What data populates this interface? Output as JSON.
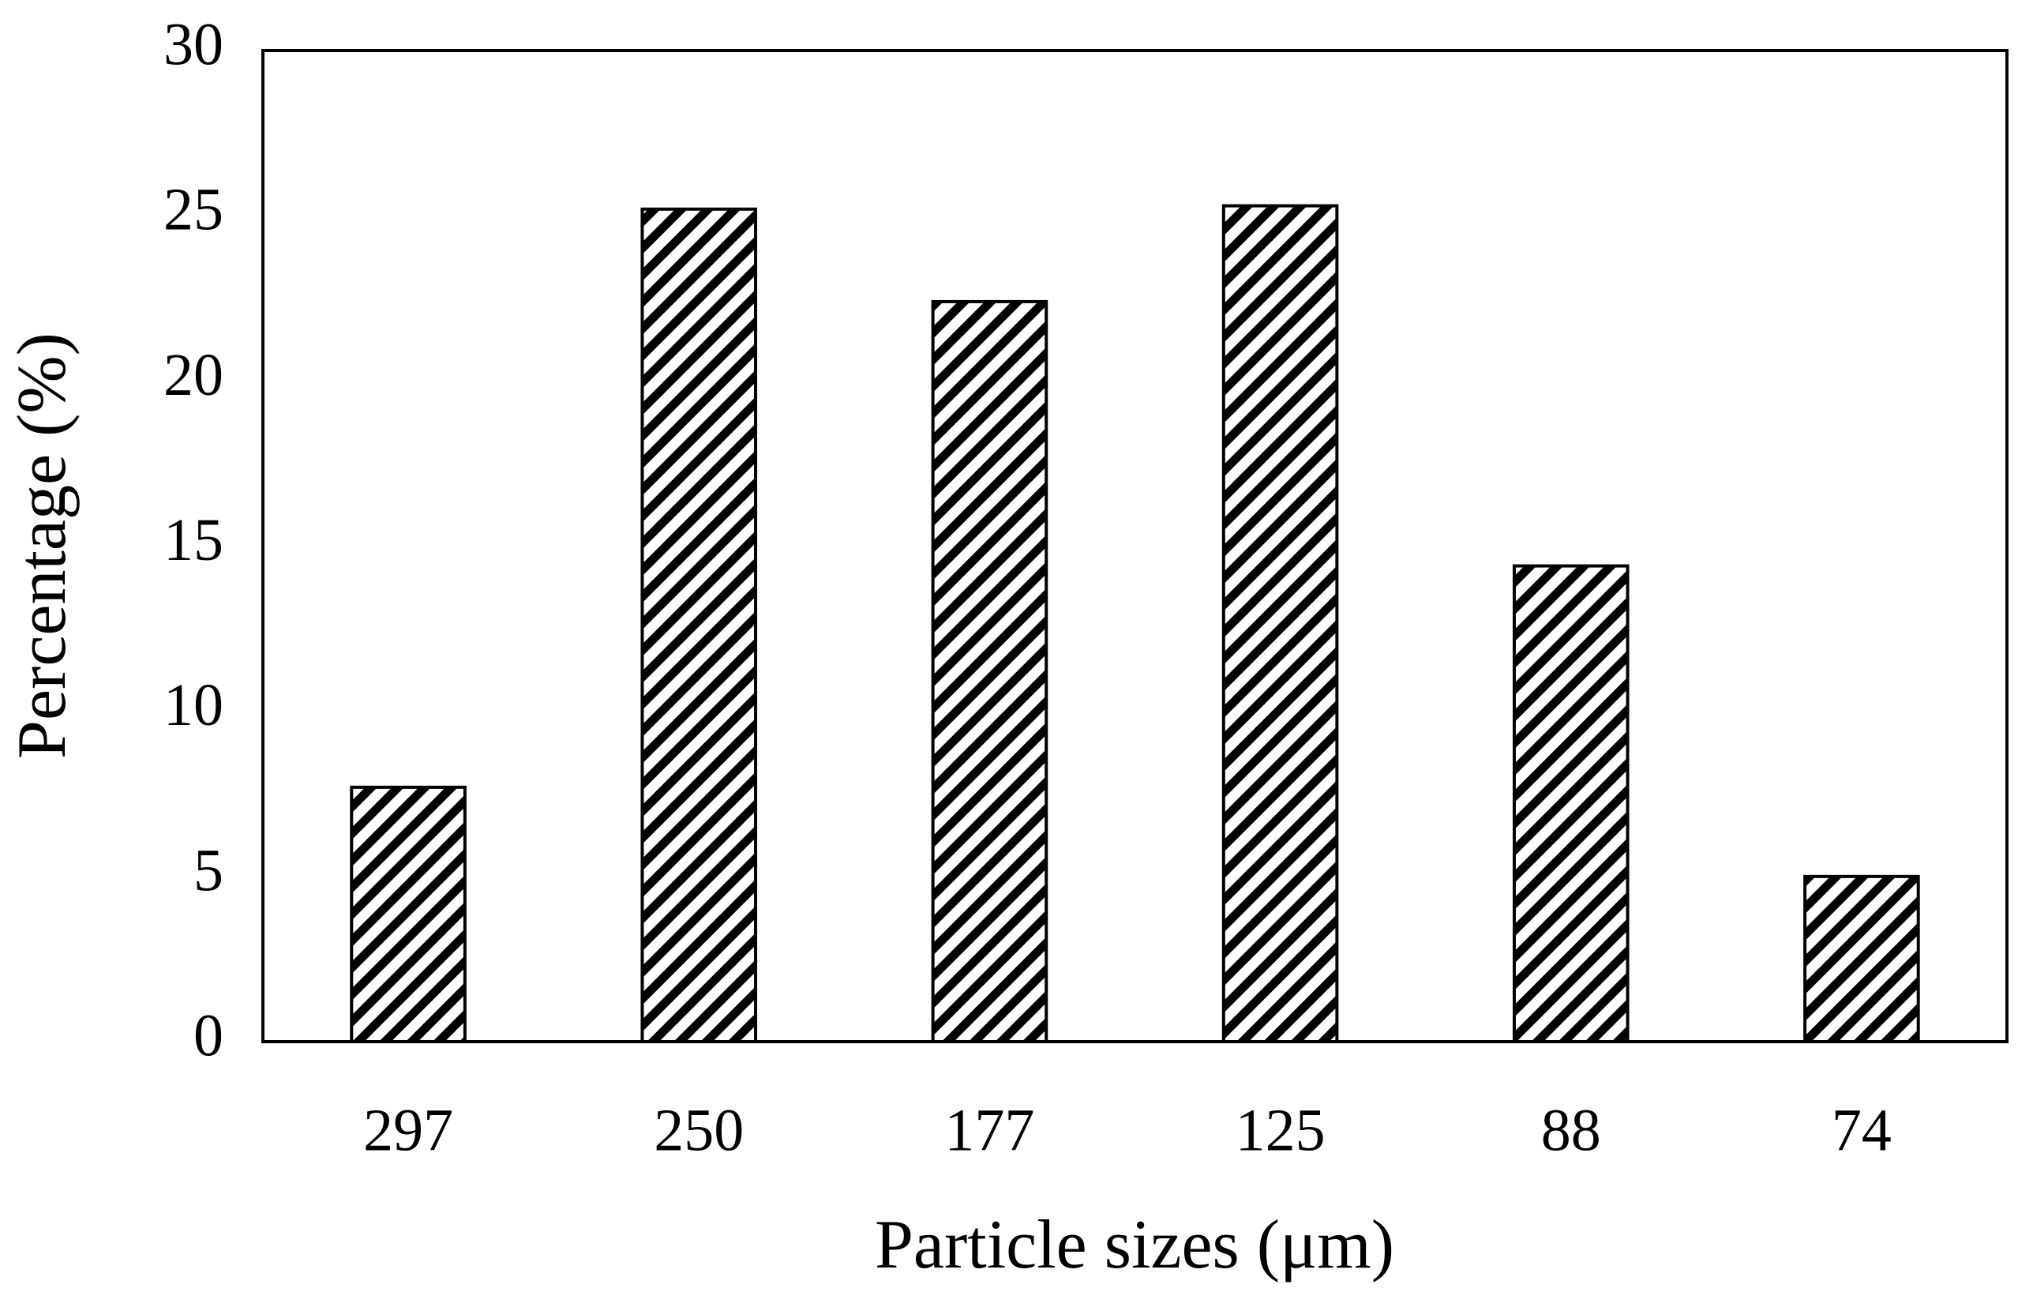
{
  "chart_data": {
    "type": "bar",
    "x_label": "Particle sizes (μm)",
    "y_label": "Percentage (%)",
    "categories": [
      "297",
      "250",
      "177",
      "125",
      "88",
      "74"
    ],
    "values": [
      7.7,
      25.2,
      22.4,
      25.3,
      14.4,
      5.0
    ],
    "color": "#000000",
    "hatch": "diagonal",
    "ylim": [
      0,
      30
    ],
    "yticks": [
      0,
      5,
      10,
      15,
      20,
      25,
      30
    ],
    "grid": false
  }
}
